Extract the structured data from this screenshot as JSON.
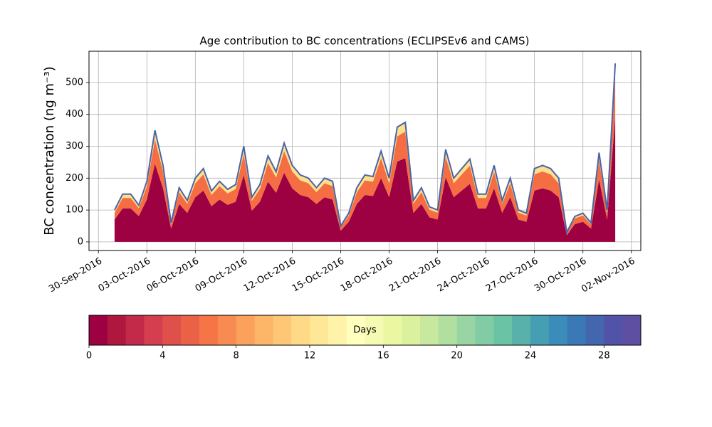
{
  "chart_data": {
    "type": "stacked_area",
    "title": "Age contribution to BC concentrations (ECLIPSEv6 and CAMS)",
    "y_label": "BC concentration (ng m⁻³)",
    "x": [
      "2016-10-01T00:00",
      "2016-10-01T12:00",
      "2016-10-02T00:00",
      "2016-10-02T12:00",
      "2016-10-03T00:00",
      "2016-10-03T12:00",
      "2016-10-04T00:00",
      "2016-10-04T12:00",
      "2016-10-05T00:00",
      "2016-10-05T12:00",
      "2016-10-06T00:00",
      "2016-10-06T12:00",
      "2016-10-07T00:00",
      "2016-10-07T12:00",
      "2016-10-08T00:00",
      "2016-10-08T12:00",
      "2016-10-09T00:00",
      "2016-10-09T12:00",
      "2016-10-10T00:00",
      "2016-10-10T12:00",
      "2016-10-11T00:00",
      "2016-10-11T12:00",
      "2016-10-12T00:00",
      "2016-10-12T12:00",
      "2016-10-13T00:00",
      "2016-10-13T12:00",
      "2016-10-14T00:00",
      "2016-10-14T12:00",
      "2016-10-15T00:00",
      "2016-10-15T12:00",
      "2016-10-16T00:00",
      "2016-10-16T12:00",
      "2016-10-17T00:00",
      "2016-10-17T12:00",
      "2016-10-18T00:00",
      "2016-10-18T12:00",
      "2016-10-19T00:00",
      "2016-10-19T12:00",
      "2016-10-20T00:00",
      "2016-10-20T12:00",
      "2016-10-21T00:00",
      "2016-10-21T12:00",
      "2016-10-22T00:00",
      "2016-10-22T12:00",
      "2016-10-23T00:00",
      "2016-10-23T12:00",
      "2016-10-24T00:00",
      "2016-10-24T12:00",
      "2016-10-25T00:00",
      "2016-10-25T12:00",
      "2016-10-26T00:00",
      "2016-10-26T12:00",
      "2016-10-27T00:00",
      "2016-10-27T12:00",
      "2016-10-28T00:00",
      "2016-10-28T12:00",
      "2016-10-29T00:00",
      "2016-10-29T12:00",
      "2016-10-30T00:00",
      "2016-10-30T12:00",
      "2016-10-31T00:00",
      "2016-10-31T12:00",
      "2016-11-01T00:00"
    ],
    "series": [
      {
        "color": "#9e0142",
        "values": [
          70,
          105,
          105,
          81,
          133,
          245,
          168,
          42,
          119,
          91,
          140,
          161,
          112,
          133,
          116,
          126,
          210,
          98,
          126,
          189,
          154,
          217,
          168,
          147,
          140,
          119,
          140,
          133,
          35,
          63,
          119,
          147,
          144,
          200,
          140,
          252,
          263,
          91,
          119,
          77,
          70,
          203,
          140,
          161,
          182,
          105,
          105,
          168,
          91,
          140,
          70,
          63,
          161,
          168,
          161,
          140,
          21,
          56,
          63,
          42,
          196,
          70,
          392
        ]
      },
      {
        "color": "#f46d43",
        "values": [
          22,
          33,
          33,
          25,
          42,
          77,
          53,
          13,
          37,
          29,
          44,
          51,
          35,
          42,
          36,
          40,
          66,
          31,
          40,
          59,
          48,
          68,
          53,
          46,
          44,
          37,
          44,
          42,
          11,
          20,
          37,
          46,
          45,
          63,
          44,
          79,
          83,
          29,
          37,
          24,
          22,
          64,
          44,
          51,
          57,
          33,
          33,
          53,
          29,
          44,
          22,
          20,
          51,
          53,
          51,
          44,
          7,
          18,
          20,
          13,
          62,
          22,
          123
        ]
      },
      {
        "color": "#fee08b",
        "values": [
          8,
          12,
          12,
          9,
          15,
          28,
          19,
          5,
          14,
          10,
          16,
          18,
          13,
          15,
          13,
          14,
          24,
          11,
          14,
          22,
          18,
          25,
          19,
          17,
          16,
          14,
          16,
          15,
          4,
          7,
          14,
          17,
          16,
          22,
          16,
          29,
          29,
          10,
          14,
          9,
          8,
          23,
          16,
          18,
          21,
          12,
          12,
          19,
          10,
          16,
          8,
          7,
          18,
          19,
          18,
          16,
          2,
          6,
          7,
          5,
          22,
          8,
          45
        ]
      }
    ],
    "edge_color": "#4a64a8",
    "xlim": [
      "2016-09-29T10:00",
      "2016-11-02T14:00"
    ],
    "xticks": [
      {
        "value": "2016-09-30T00:00",
        "label": "30-Sep-2016"
      },
      {
        "value": "2016-10-03T00:00",
        "label": "03-Oct-2016"
      },
      {
        "value": "2016-10-06T00:00",
        "label": "06-Oct-2016"
      },
      {
        "value": "2016-10-09T00:00",
        "label": "09-Oct-2016"
      },
      {
        "value": "2016-10-12T00:00",
        "label": "12-Oct-2016"
      },
      {
        "value": "2016-10-15T00:00",
        "label": "15-Oct-2016"
      },
      {
        "value": "2016-10-18T00:00",
        "label": "18-Oct-2016"
      },
      {
        "value": "2016-10-21T00:00",
        "label": "21-Oct-2016"
      },
      {
        "value": "2016-10-24T00:00",
        "label": "24-Oct-2016"
      },
      {
        "value": "2016-10-27T00:00",
        "label": "27-Oct-2016"
      },
      {
        "value": "2016-10-30T00:00",
        "label": "30-Oct-2016"
      },
      {
        "value": "2016-11-02T00:00",
        "label": "02-Nov-2016"
      }
    ],
    "ylim": [
      -27,
      598
    ],
    "yticks": [
      0,
      100,
      200,
      300,
      400,
      500
    ],
    "grid": true,
    "colorbar": {
      "label": "Days",
      "lim": [
        0,
        30
      ],
      "ticks": [
        0,
        4,
        8,
        12,
        16,
        20,
        24,
        28
      ],
      "colors": [
        "#9e0142",
        "#b0173f",
        "#c32a4a",
        "#d53e4f",
        "#e0504b",
        "#eb6146",
        "#f57547",
        "#f88b51",
        "#fba15b",
        "#fdb567",
        "#fdc776",
        "#fed986",
        "#fee797",
        "#fff3aa",
        "#ffffbe",
        "#f6fbb3",
        "#ecf7a2",
        "#dbf19d",
        "#c7e89e",
        "#b1df9f",
        "#99d5a4",
        "#81cca5",
        "#6bc3a5",
        "#58b1aa",
        "#469eb3",
        "#3b8bbb",
        "#3a78b6",
        "#4466ae",
        "#5053a7",
        "#5e4fa2"
      ]
    }
  }
}
